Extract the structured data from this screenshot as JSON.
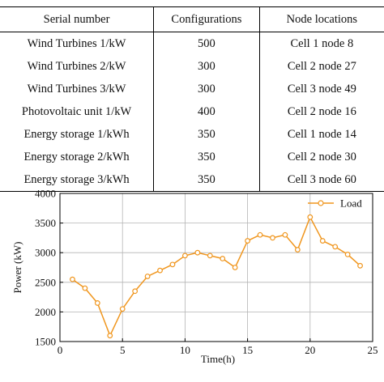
{
  "table": {
    "headers": [
      "Serial number",
      "Configurations",
      "Node locations"
    ],
    "rows": [
      {
        "name": "Wind Turbines 1/kW",
        "config": "500",
        "node": "Cell 1 node 8"
      },
      {
        "name": "Wind Turbines 2/kW",
        "config": "300",
        "node": "Cell 2 node 27"
      },
      {
        "name": "Wind Turbines 3/kW",
        "config": "300",
        "node": "Cell 3 node 49"
      },
      {
        "name": "Photovoltaic unit 1/kW",
        "config": "400",
        "node": "Cell 2 node 16"
      },
      {
        "name": "Energy storage 1/kWh",
        "config": "350",
        "node": "Cell 1 node 14"
      },
      {
        "name": "Energy storage 2/kWh",
        "config": "350",
        "node": "Cell 2 node 30"
      },
      {
        "name": "Energy storage 3/kWh",
        "config": "350",
        "node": "Cell 3 node 60"
      }
    ]
  },
  "chart_data": {
    "type": "line",
    "xlabel": "Time(h)",
    "ylabel": "Power (kW)",
    "xlim": [
      0,
      25
    ],
    "ylim": [
      1500,
      4000
    ],
    "xticks": [
      0,
      5,
      10,
      15,
      20,
      25
    ],
    "yticks": [
      1500,
      2000,
      2500,
      3000,
      3500,
      4000
    ],
    "grid": true,
    "legend": "top-right",
    "color": "#f0961e",
    "series": [
      {
        "name": "Load",
        "x": [
          1,
          2,
          3,
          4,
          5,
          6,
          7,
          8,
          9,
          10,
          11,
          12,
          13,
          14,
          15,
          16,
          17,
          18,
          19,
          20,
          21,
          22,
          23,
          24
        ],
        "y": [
          2550,
          2400,
          2150,
          1600,
          2050,
          2350,
          2600,
          2700,
          2800,
          2950,
          3000,
          2950,
          2900,
          2750,
          3200,
          3300,
          3250,
          3300,
          3050,
          3600,
          3200,
          3100,
          2970,
          2780
        ]
      }
    ]
  }
}
